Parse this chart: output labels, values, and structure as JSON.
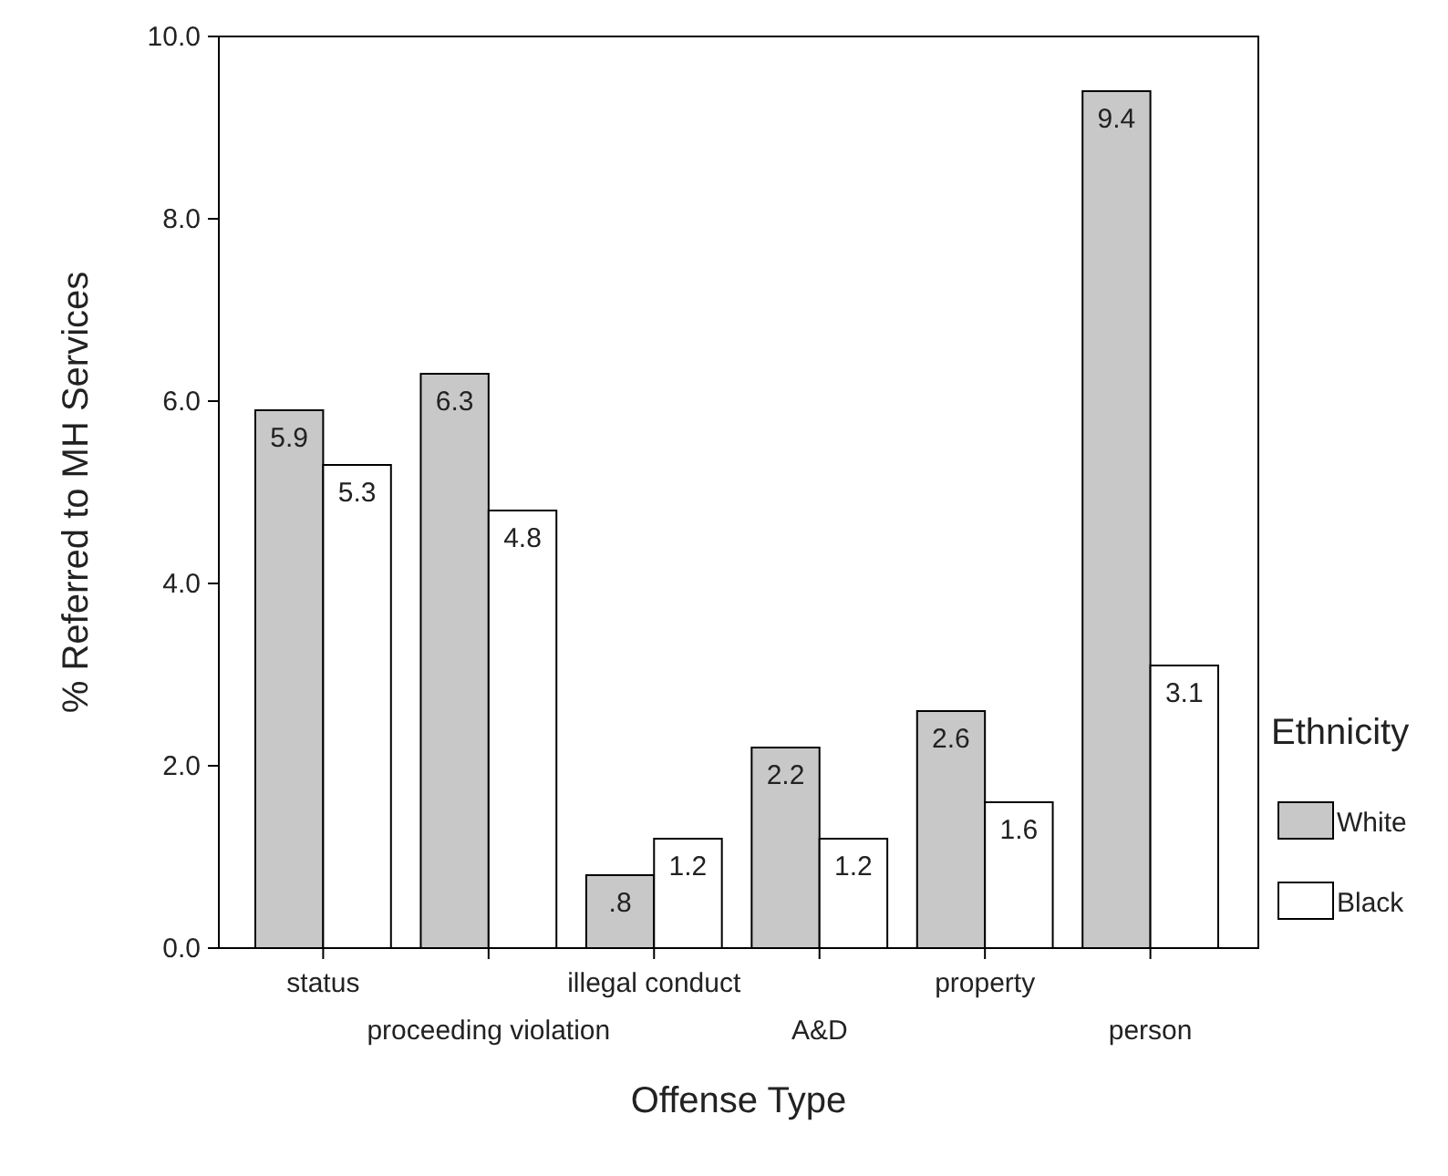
{
  "chart_data": {
    "type": "bar",
    "xlabel": "Offense Type",
    "ylabel": "% Referred to MH Services",
    "legend_title": "Ethnicity",
    "legend": "right",
    "categories": [
      "status",
      "proceeding violation",
      "illegal conduct",
      "A&D",
      "property",
      "person"
    ],
    "series": [
      {
        "name": "White",
        "color": "#c8c8c8",
        "values": [
          5.9,
          6.3,
          0.8,
          2.2,
          2.6,
          9.4
        ],
        "value_labels": [
          "5.9",
          "6.3",
          ".8",
          "2.2",
          "2.6",
          "9.4"
        ]
      },
      {
        "name": "Black",
        "color": "#ffffff",
        "values": [
          5.3,
          4.8,
          1.2,
          1.2,
          1.6,
          3.1
        ],
        "value_labels": [
          "5.3",
          "4.8",
          "1.2",
          "1.2",
          "1.6",
          "3.1"
        ]
      }
    ],
    "ylim": [
      0,
      10
    ],
    "yticks": [
      {
        "value": 0,
        "label": "0.0"
      },
      {
        "value": 2,
        "label": "2.0"
      },
      {
        "value": 4,
        "label": "4.0"
      },
      {
        "value": 6,
        "label": "6.0"
      },
      {
        "value": 8,
        "label": "8.0"
      },
      {
        "value": 10,
        "label": "10.0"
      }
    ],
    "grid": false
  }
}
